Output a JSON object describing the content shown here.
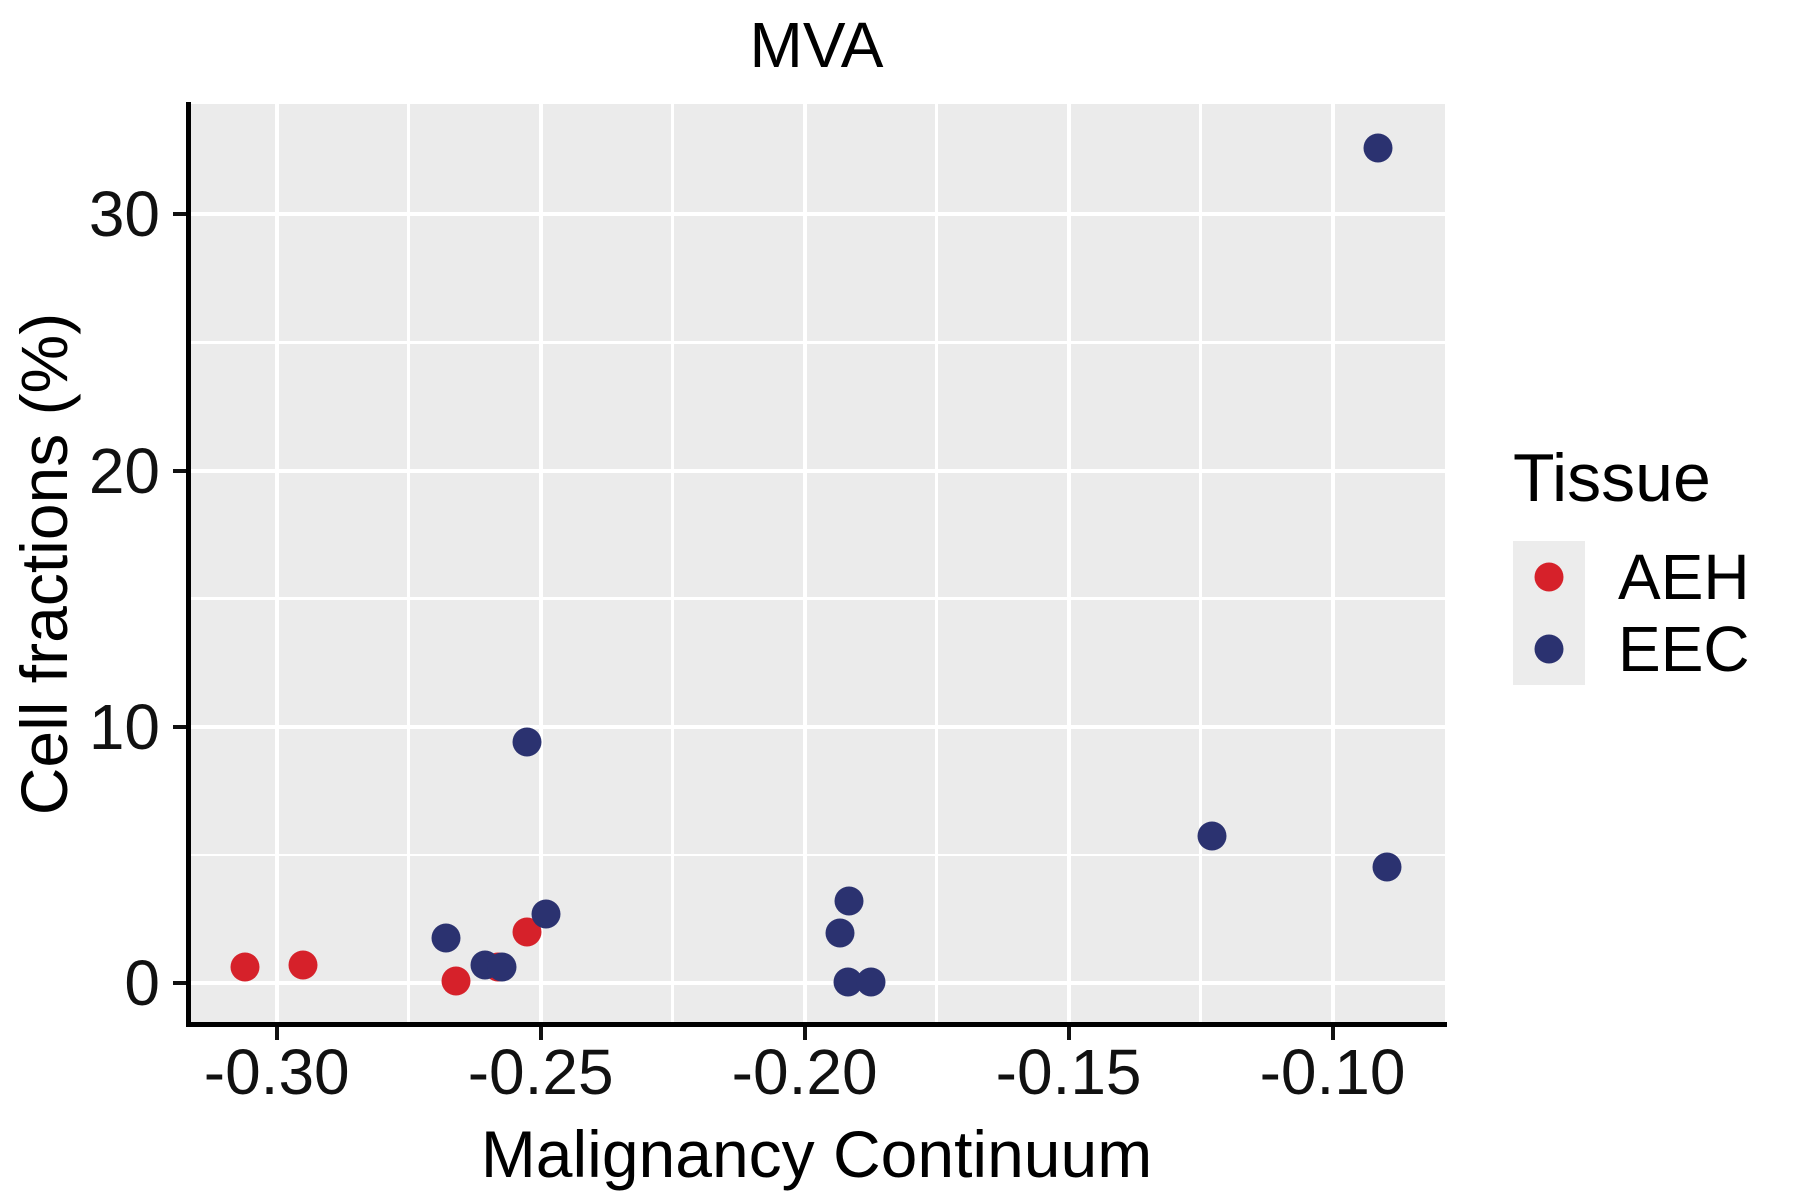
{
  "title": "MVA",
  "chart_data": {
    "type": "scatter",
    "title": "MVA",
    "xlabel": "Malignancy Continuum",
    "ylabel": "Cell fractions (%)",
    "xlim": [
      -0.3168,
      -0.0787
    ],
    "ylim": [
      -1.59,
      34.3
    ],
    "grid": true,
    "legend_position": "right",
    "x_ticks": [
      -0.3,
      -0.25,
      -0.2,
      -0.15,
      -0.1
    ],
    "x_tick_labels": [
      "-0.30",
      "-0.25",
      "-0.20",
      "-0.15",
      "-0.10"
    ],
    "x_minor_ticks": [
      -0.275,
      -0.225,
      -0.175,
      -0.125
    ],
    "y_ticks": [
      0,
      10,
      20,
      30
    ],
    "y_tick_labels": [
      "0",
      "10",
      "20",
      "30"
    ],
    "y_minor_ticks": [
      5,
      15,
      25
    ],
    "series": [
      {
        "name": "AEH",
        "color": "#D6212A",
        "points": [
          [
            -0.306,
            0.65
          ],
          [
            -0.295,
            0.7
          ],
          [
            -0.266,
            0.1
          ],
          [
            -0.258,
            0.63
          ],
          [
            -0.2525,
            2.0
          ]
        ]
      },
      {
        "name": "EEC",
        "color": "#2B3270",
        "points": [
          [
            -0.268,
            1.75
          ],
          [
            -0.2605,
            0.7
          ],
          [
            -0.2573,
            0.65
          ],
          [
            -0.2525,
            9.4
          ],
          [
            -0.249,
            2.7
          ],
          [
            -0.1933,
            1.97
          ],
          [
            -0.1916,
            3.2
          ],
          [
            -0.1918,
            0.06
          ],
          [
            -0.1874,
            0.04
          ],
          [
            -0.1229,
            5.75
          ],
          [
            -0.0914,
            32.6
          ],
          [
            -0.0897,
            4.55
          ]
        ]
      }
    ]
  },
  "legend": {
    "title": "Tissue",
    "entries": [
      {
        "label": "AEH",
        "color": "#D6212A"
      },
      {
        "label": "EEC",
        "color": "#2B3270"
      }
    ]
  },
  "colors": {
    "panel_background": "#EBEBEB",
    "gridline": "#FFFFFF",
    "axis_line": "#000000",
    "tick_text": "#111111",
    "legend_key_background": "#ECECEC"
  }
}
